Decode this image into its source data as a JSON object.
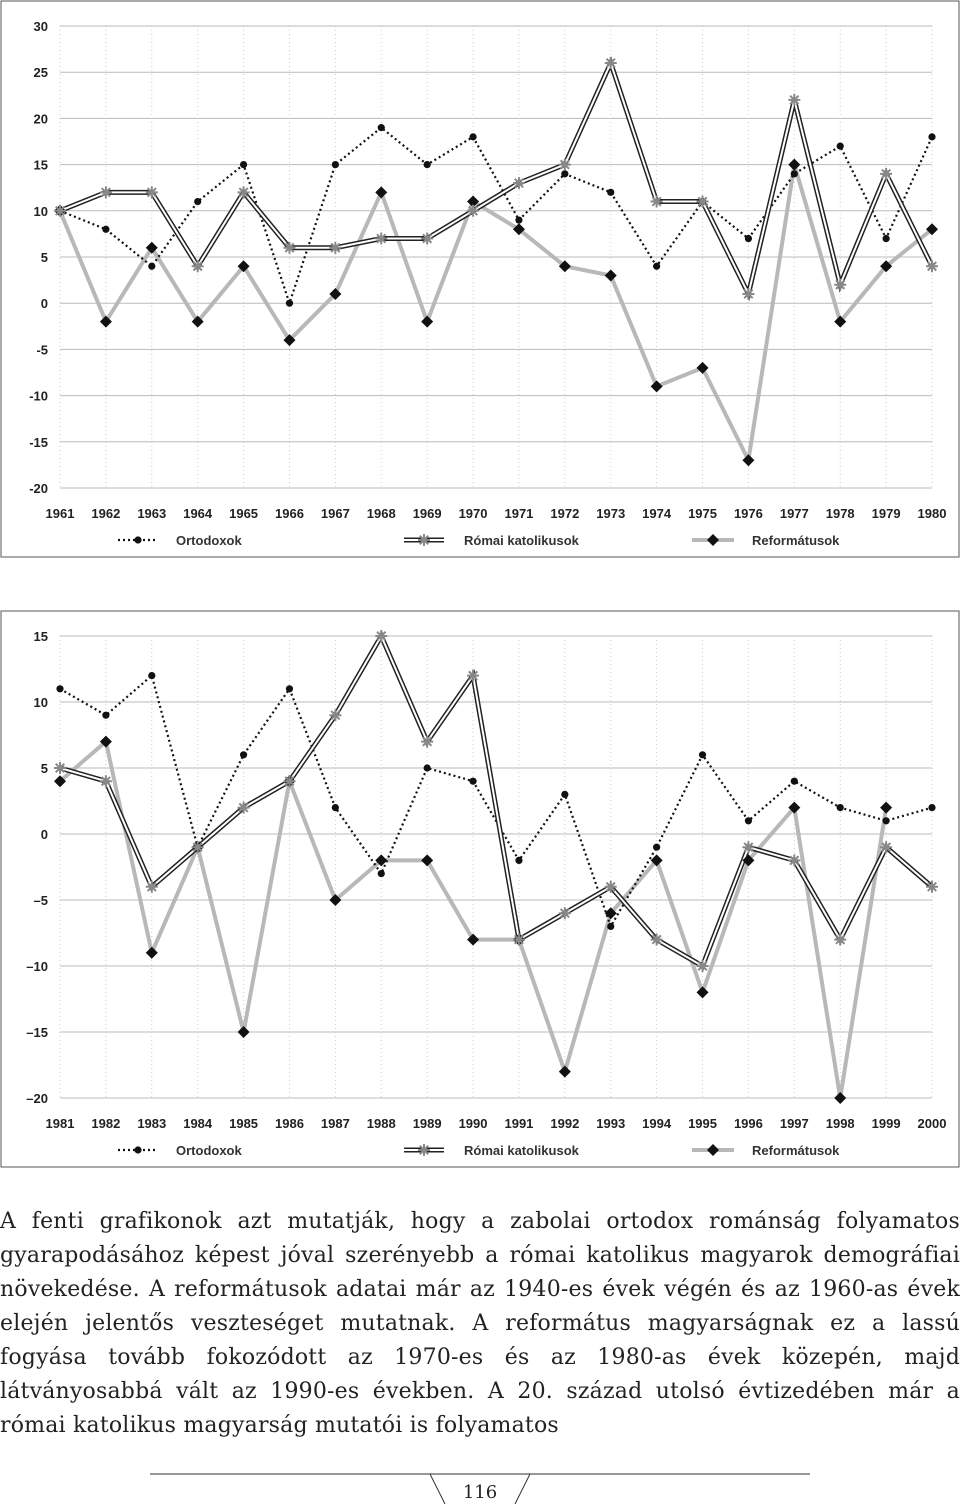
{
  "chart_data": [
    {
      "type": "line",
      "x": [
        "1961",
        "1962",
        "1963",
        "1964",
        "1965",
        "1966",
        "1967",
        "1968",
        "1969",
        "1970",
        "1971",
        "1972",
        "1973",
        "1974",
        "1975",
        "1976",
        "1977",
        "1978",
        "1979",
        "1980"
      ],
      "ylim": [
        -20,
        30
      ],
      "yticks": [
        30,
        25,
        20,
        15,
        10,
        5,
        0,
        -5,
        -10,
        -15,
        -20
      ],
      "ytick_labels": [
        "30",
        "25",
        "20",
        "15",
        "10",
        "5",
        "0",
        "-5",
        "-10",
        "-15",
        "-20"
      ],
      "grid": true,
      "legend_position": "bottom",
      "series": [
        {
          "name": "Ortodoxok",
          "style": "dotted-circle",
          "values": [
            10,
            8,
            4,
            11,
            15,
            0,
            15,
            19,
            15,
            18,
            9,
            14,
            12,
            4,
            11,
            7,
            14,
            17,
            7,
            18
          ]
        },
        {
          "name": "Római katolikusok",
          "style": "double-star",
          "values": [
            10,
            12,
            12,
            4,
            12,
            6,
            6,
            7,
            7,
            10,
            13,
            15,
            26,
            11,
            11,
            1,
            22,
            2,
            14,
            4
          ]
        },
        {
          "name": "Reformátusok",
          "style": "gray-diamond",
          "values": [
            10,
            -2,
            6,
            -2,
            4,
            -4,
            1,
            12,
            -2,
            11,
            8,
            4,
            3,
            -9,
            -7,
            -17,
            15,
            -2,
            4,
            8
          ]
        }
      ]
    },
    {
      "type": "line",
      "x": [
        "1981",
        "1982",
        "1983",
        "1984",
        "1985",
        "1986",
        "1987",
        "1988",
        "1989",
        "1990",
        "1991",
        "1992",
        "1993",
        "1994",
        "1995",
        "1996",
        "1997",
        "1998",
        "1999",
        "2000"
      ],
      "ylim": [
        -20,
        15
      ],
      "yticks": [
        15,
        10,
        5,
        0,
        -5,
        -10,
        -15,
        -20
      ],
      "ytick_labels": [
        "15",
        "10",
        "5",
        "0",
        "–5",
        "–10",
        "–15",
        "–20"
      ],
      "grid": true,
      "legend_position": "bottom",
      "series": [
        {
          "name": "Ortodoxok",
          "style": "dotted-circle",
          "values": [
            11,
            9,
            12,
            -1,
            6,
            11,
            2,
            -3,
            5,
            4,
            -2,
            3,
            -7,
            -1,
            6,
            1,
            4,
            2,
            1,
            2
          ]
        },
        {
          "name": "Római katolikusok",
          "style": "double-star",
          "values": [
            5,
            4,
            -4,
            -1,
            2,
            4,
            9,
            15,
            7,
            12,
            -8,
            -6,
            -4,
            -8,
            -10,
            -1,
            -2,
            -8,
            -1,
            -4
          ]
        },
        {
          "name": "Reformátusok",
          "style": "gray-diamond",
          "values": [
            4,
            7,
            -9,
            -1,
            -15,
            4,
            -5,
            -2,
            -2,
            -8,
            -8,
            -18,
            -6,
            -2,
            -12,
            -2,
            2,
            -20,
            2,
            null
          ]
        }
      ]
    }
  ],
  "paragraph": "A fenti grafikonok azt mutatják, hogy a zabolai ortodox románság folyamatos gyarapodásához képest jóval szerényebb a római katolikus magyarok demográfiai növekedése. A reformátusok adatai már az 1940-es évek végén és az 1960-as évek elején jelentős veszteséget mutatnak. A református magyarságnak ez a lassú fogyása tovább fokozódott az 1970-es és az 1980-as évek közepén, majd látványosabbá vált az 1990-es években. A 20. század utolsó évtizedében már a római katolikus magyarság mutatói is folyamatos",
  "page_number": "116"
}
